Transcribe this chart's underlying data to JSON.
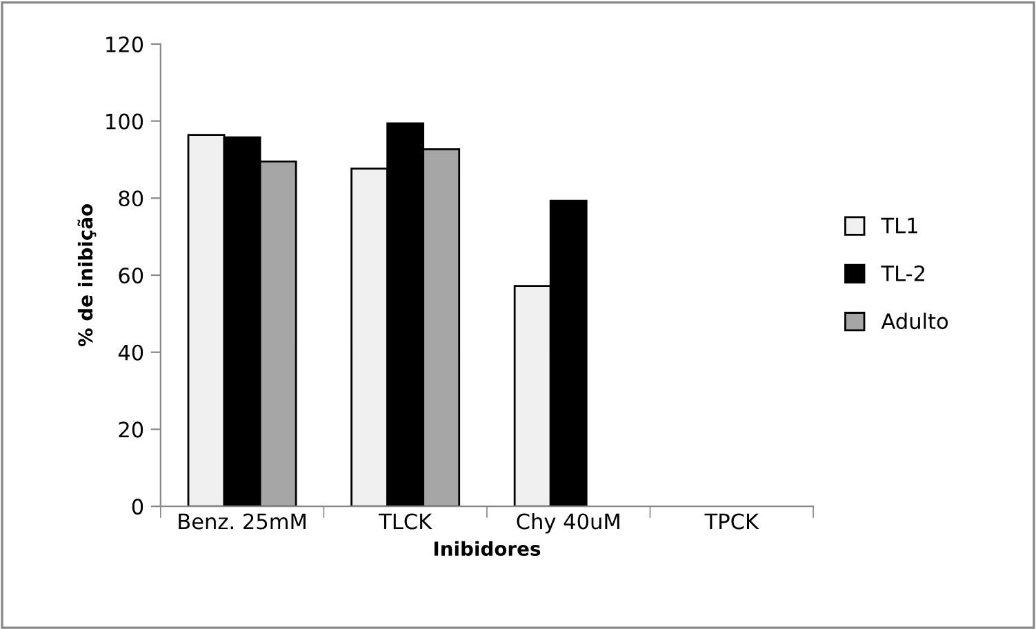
{
  "chart_data": {
    "type": "bar",
    "xlabel": "Inibidores",
    "ylabel": "% de inibição",
    "categories": [
      "Benz. 25mM",
      "TLCK",
      "Chy 40uM",
      "TPCK"
    ],
    "series": [
      {
        "name": "TL1",
        "color": "#f0f0f0",
        "values": [
          96.4,
          87.7,
          57.2,
          null
        ]
      },
      {
        "name": "TL-2",
        "color": "#000000",
        "values": [
          95.8,
          99.4,
          79.3,
          null
        ]
      },
      {
        "name": "Adulto",
        "color": "#a6a6a6",
        "values": [
          89.5,
          92.7,
          null,
          null
        ]
      }
    ],
    "ylim": [
      0,
      120
    ],
    "yticks": [
      0,
      20,
      40,
      60,
      80,
      100,
      120
    ],
    "grid": false,
    "legend": "right"
  }
}
